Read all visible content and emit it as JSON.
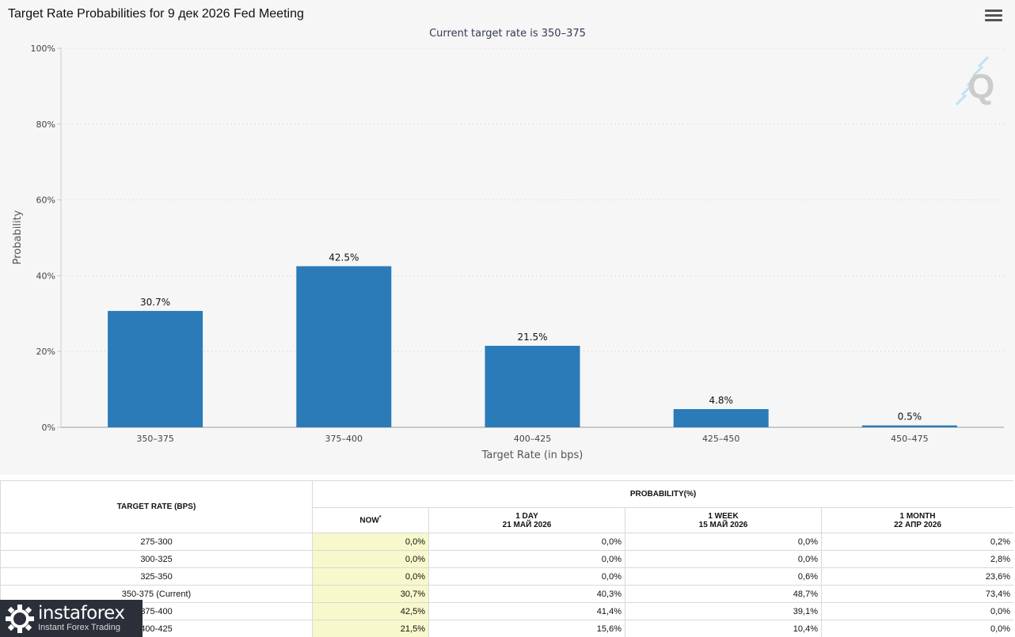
{
  "header": {
    "title": "Target Rate Probabilities for 9 дек 2026 Fed Meeting",
    "menu_icon": "hamburger-menu-icon",
    "watermark_icon": "q-logo-icon"
  },
  "chart_data": {
    "type": "bar",
    "title": "Target Rate Probabilities for 9 дек 2026 Fed Meeting",
    "subtitle": "Current target rate is 350–375",
    "xlabel": "Target Rate (in bps)",
    "ylabel": "Probability",
    "categories": [
      "350–375",
      "375–400",
      "400–425",
      "425–450",
      "450–475"
    ],
    "values": [
      30.7,
      42.5,
      21.5,
      4.8,
      0.5
    ],
    "data_labels": [
      "30.7%",
      "42.5%",
      "21.5%",
      "4.8%",
      "0.5%"
    ],
    "ylim": [
      0,
      100
    ],
    "yticks": [
      0,
      20,
      40,
      60,
      80,
      100
    ],
    "ytick_labels": [
      "0%",
      "20%",
      "40%",
      "60%",
      "80%",
      "100%"
    ],
    "grid": true,
    "bar_color": "#2b7bb9",
    "legend": "none"
  },
  "table": {
    "header_rate": "TARGET RATE (BPS)",
    "header_probability": "PROBABILITY(%)",
    "columns": [
      {
        "line1": "NOW",
        "line2": "",
        "star": "*"
      },
      {
        "line1": "1 DAY",
        "line2": "21 МАЙ 2026",
        "star": ""
      },
      {
        "line1": "1 WEEK",
        "line2": "15 МАЙ 2026",
        "star": ""
      },
      {
        "line1": "1 MONTH",
        "line2": "22 АПР 2026",
        "star": ""
      }
    ],
    "rows": [
      {
        "rate": "275-300",
        "values": [
          "0,0%",
          "0,0%",
          "0,0%",
          "0,2%"
        ]
      },
      {
        "rate": "300-325",
        "values": [
          "0,0%",
          "0,0%",
          "0,0%",
          "2,8%"
        ]
      },
      {
        "rate": "325-350",
        "values": [
          "0,0%",
          "0,0%",
          "0,6%",
          "23,6%"
        ]
      },
      {
        "rate": "350-375 (Current)",
        "values": [
          "30,7%",
          "40,3%",
          "48,7%",
          "73,4%"
        ]
      },
      {
        "rate": "375-400",
        "values": [
          "42,5%",
          "41,4%",
          "39,1%",
          "0,0%"
        ]
      },
      {
        "rate": "400-425",
        "values": [
          "21,5%",
          "15,6%",
          "10,4%",
          "0,0%"
        ]
      }
    ],
    "now_highlight_color": "#f7f8cc"
  },
  "brand": {
    "name": "instaforex",
    "tagline": "Instant Forex Trading",
    "icon": "instaforex-logo-icon"
  }
}
